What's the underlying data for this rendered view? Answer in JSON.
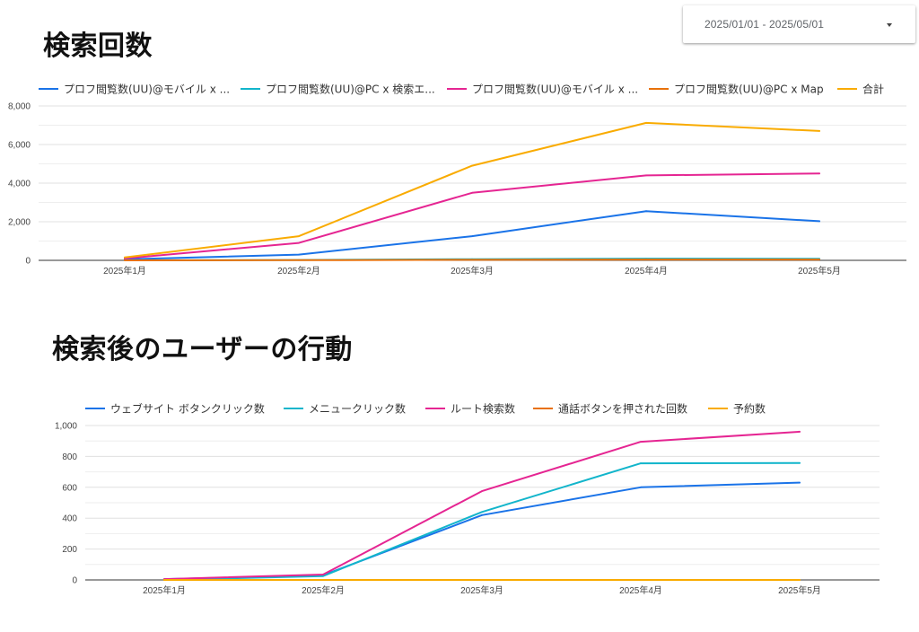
{
  "date_range": {
    "label": "2025/01/01 - 2025/05/01"
  },
  "sections": [
    {
      "title": "検索回数"
    },
    {
      "title": "検索後のユーザーの行動"
    }
  ],
  "chart_data": [
    {
      "type": "line",
      "categories": [
        "2025年1月",
        "2025年2月",
        "2025年3月",
        "2025年4月",
        "2025年5月"
      ],
      "ylim": [
        0,
        8000
      ],
      "yticks": [
        0,
        2000,
        4000,
        6000,
        8000
      ],
      "ytick_labels": [
        "0",
        "2,000",
        "4,000",
        "6,000",
        "8,000"
      ],
      "grid": true,
      "legend_position": "top",
      "series": [
        {
          "name": "プロフ閲覧数(UU)@モバイル x ...",
          "color": "#1a73e8",
          "values": [
            50,
            300,
            1250,
            2550,
            2030
          ]
        },
        {
          "name": "プロフ閲覧数(UU)@PC x 検索エ...",
          "color": "#12b5cb",
          "values": [
            0,
            20,
            60,
            90,
            80
          ]
        },
        {
          "name": "プロフ閲覧数(UU)@モバイル x ...",
          "color": "#e52592",
          "values": [
            100,
            900,
            3500,
            4400,
            4500
          ]
        },
        {
          "name": "プロフ閲覧数(UU)@PC x Map",
          "color": "#e8710a",
          "values": [
            0,
            10,
            30,
            40,
            40
          ]
        },
        {
          "name": "合計",
          "color": "#f9ab00",
          "values": [
            150,
            1250,
            4900,
            7120,
            6700
          ]
        }
      ]
    },
    {
      "type": "line",
      "categories": [
        "2025年1月",
        "2025年2月",
        "2025年3月",
        "2025年4月",
        "2025年5月"
      ],
      "ylim": [
        0,
        1000
      ],
      "yticks": [
        0,
        200,
        400,
        600,
        800,
        1000
      ],
      "ytick_labels": [
        "0",
        "200",
        "400",
        "600",
        "800",
        "1,000"
      ],
      "grid": true,
      "legend_position": "top",
      "series": [
        {
          "name": "ウェブサイト ボタンクリック数",
          "color": "#1a73e8",
          "values": [
            5,
            30,
            420,
            600,
            630
          ]
        },
        {
          "name": "メニュークリック数",
          "color": "#12b5cb",
          "values": [
            0,
            25,
            440,
            755,
            757
          ]
        },
        {
          "name": "ルート検索数",
          "color": "#e52592",
          "values": [
            5,
            35,
            575,
            895,
            960
          ]
        },
        {
          "name": "通話ボタンを押された回数",
          "color": "#e8710a",
          "values": [
            0,
            0,
            0,
            0,
            0
          ]
        },
        {
          "name": "予約数",
          "color": "#f9ab00",
          "values": [
            0,
            0,
            0,
            0,
            0
          ]
        }
      ]
    }
  ]
}
